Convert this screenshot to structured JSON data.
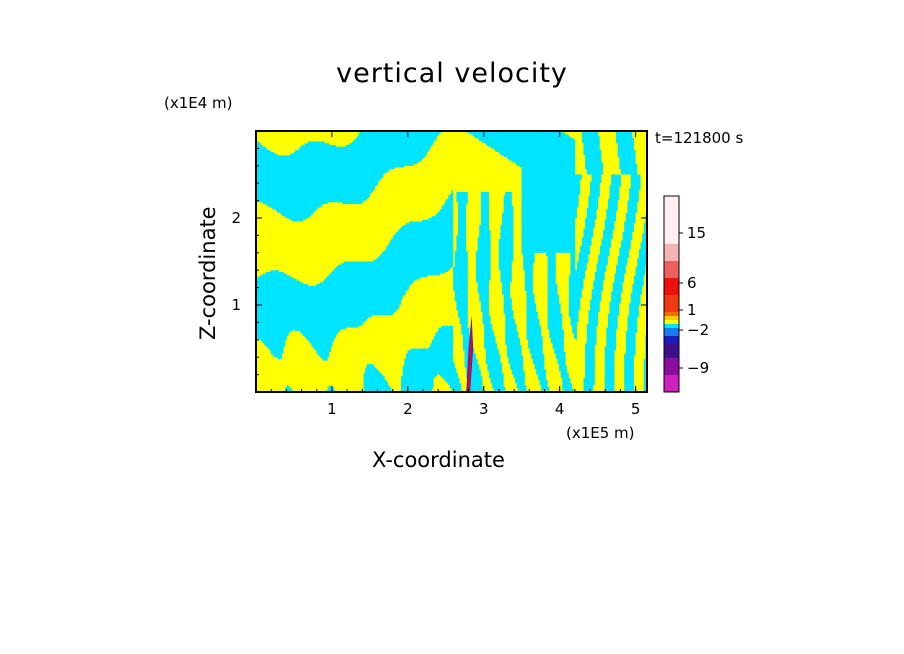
{
  "chart_data": {
    "type": "heatmap",
    "title": "vertical velocity",
    "xlabel": "X-coordinate",
    "ylabel": "Z-coordinate",
    "x_unit": "(x1E5 m)",
    "z_unit": "(x1E4 m)",
    "time_label": "t=121800 s",
    "xlim": [
      0,
      5.15
    ],
    "ylim": [
      0,
      3.0
    ],
    "x_ticks": [
      1,
      2,
      3,
      4,
      5
    ],
    "y_ticks": [
      1,
      2
    ],
    "x_tick_labels": [
      "1",
      "2",
      "3",
      "4",
      "5"
    ],
    "y_tick_labels": [
      "1",
      "2"
    ],
    "colorbar": {
      "labels": [
        {
          "text": "15",
          "value": 15
        },
        {
          "text": "6",
          "value": 6
        },
        {
          "text": "1",
          "value": 1
        },
        {
          "text": "−2",
          "value": -2
        },
        {
          "text": "−9",
          "value": -9
        }
      ],
      "colors": [
        "#ee0f9f",
        "#cc22bb",
        "#8a0f9e",
        "#3d0f8a",
        "#1c1cb8",
        "#1a7df0",
        "#00e5ff",
        "#ffff00",
        "#f5d000",
        "#ee7000",
        "#ee3a10",
        "#ee0f0f",
        "#ee6060",
        "#f5b4b4",
        "#fff0ef"
      ]
    },
    "field_colors": {
      "positive": "#ffff00",
      "negative": "#00e5ff",
      "updraft": "#ee0f0f",
      "downdraft": "#6d0fa0"
    }
  }
}
